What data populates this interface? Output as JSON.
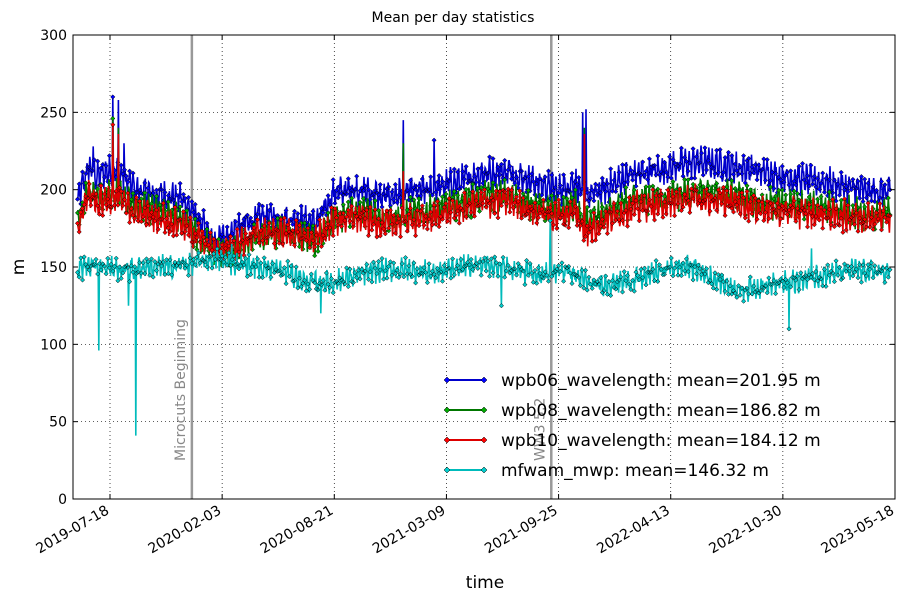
{
  "chart_data": {
    "type": "line",
    "title": "Mean per day statistics",
    "xlabel": "time",
    "ylabel": "m",
    "ylim": [
      0,
      300
    ],
    "xlim": [
      "2019-05-13",
      "2023-05-18"
    ],
    "yticks": [
      0,
      50,
      100,
      150,
      200,
      250,
      300
    ],
    "xticks": [
      "2019-07-18",
      "2020-02-03",
      "2020-08-21",
      "2021-03-09",
      "2021-09-25",
      "2022-04-13",
      "2022-10-30",
      "2023-05-18"
    ],
    "grid": true,
    "legend_position": "lower-right",
    "vertical_markers": [
      {
        "date": "2019-12-11",
        "label": "Microcuts Beginning",
        "color": "#999999"
      },
      {
        "date": "2021-09-12",
        "label": "WW3 5.2",
        "color": "#999999"
      }
    ],
    "x_start": "2019-05-21",
    "x_end": "2023-05-09",
    "series": [
      {
        "name": "wpb06_wavelength",
        "legend": "wpb06_wavelength: mean=201.95 m",
        "color": "#0000cc",
        "marker_color": "#0000ff",
        "keypoints": [
          [
            "2019-05-21",
            192
          ],
          [
            "2019-06-10",
            215
          ],
          [
            "2019-06-25",
            208
          ],
          [
            "2019-07-13",
            212
          ],
          [
            "2019-07-30",
            212
          ],
          [
            "2019-09-01",
            200
          ],
          [
            "2019-10-10",
            196
          ],
          [
            "2019-11-20",
            195
          ],
          [
            "2019-12-20",
            182
          ],
          [
            "2020-01-20",
            165
          ],
          [
            "2020-03-01",
            175
          ],
          [
            "2020-04-10",
            182
          ],
          [
            "2020-05-20",
            182
          ],
          [
            "2020-06-20",
            180
          ],
          [
            "2020-07-20",
            178
          ],
          [
            "2020-08-21",
            198
          ],
          [
            "2020-10-01",
            200
          ],
          [
            "2020-11-15",
            195
          ],
          [
            "2020-12-30",
            198
          ],
          [
            "2021-02-10",
            200
          ],
          [
            "2021-03-20",
            204
          ],
          [
            "2021-05-10",
            210
          ],
          [
            "2021-06-25",
            212
          ],
          [
            "2021-08-10",
            205
          ],
          [
            "2021-09-25",
            200
          ],
          [
            "2021-10-25",
            205
          ],
          [
            "2021-11-10",
            195
          ],
          [
            "2021-12-15",
            200
          ],
          [
            "2022-02-01",
            210
          ],
          [
            "2022-03-20",
            212
          ],
          [
            "2022-04-13",
            215
          ],
          [
            "2022-06-01",
            218
          ],
          [
            "2022-08-01",
            215
          ],
          [
            "2022-09-15",
            212
          ],
          [
            "2022-10-30",
            208
          ],
          [
            "2023-01-10",
            205
          ],
          [
            "2023-03-10",
            200
          ],
          [
            "2023-05-09",
            198
          ]
        ],
        "spikes": [
          [
            "2019-07-23",
            260
          ],
          [
            "2019-08-02",
            258
          ],
          [
            "2019-08-12",
            230
          ],
          [
            "2020-12-22",
            245
          ],
          [
            "2021-11-07",
            250
          ],
          [
            "2021-11-13",
            252
          ],
          [
            "2019-06-18",
            228
          ],
          [
            "2021-02-15",
            232
          ]
        ]
      },
      {
        "name": "wpb08_wavelength",
        "legend": "wpb08_wavelength: mean=186.82 m",
        "color": "#007700",
        "marker_color": "#00aa00",
        "keypoints": [
          [
            "2019-05-21",
            178
          ],
          [
            "2019-06-10",
            200
          ],
          [
            "2019-06-25",
            195
          ],
          [
            "2019-07-13",
            196
          ],
          [
            "2019-07-30",
            198
          ],
          [
            "2019-09-01",
            190
          ],
          [
            "2019-10-10",
            186
          ],
          [
            "2019-11-20",
            182
          ],
          [
            "2019-12-20",
            172
          ],
          [
            "2020-01-20",
            158
          ],
          [
            "2020-03-01",
            162
          ],
          [
            "2020-04-10",
            172
          ],
          [
            "2020-05-20",
            172
          ],
          [
            "2020-06-20",
            170
          ],
          [
            "2020-07-20",
            168
          ],
          [
            "2020-08-21",
            182
          ],
          [
            "2020-10-01",
            186
          ],
          [
            "2020-11-15",
            182
          ],
          [
            "2020-12-30",
            184
          ],
          [
            "2021-02-10",
            186
          ],
          [
            "2021-03-20",
            190
          ],
          [
            "2021-05-10",
            195
          ],
          [
            "2021-06-25",
            196
          ],
          [
            "2021-08-10",
            190
          ],
          [
            "2021-09-25",
            186
          ],
          [
            "2021-10-25",
            190
          ],
          [
            "2021-11-10",
            178
          ],
          [
            "2021-12-15",
            184
          ],
          [
            "2022-02-01",
            192
          ],
          [
            "2022-03-20",
            194
          ],
          [
            "2022-04-13",
            196
          ],
          [
            "2022-06-01",
            198
          ],
          [
            "2022-08-01",
            196
          ],
          [
            "2022-09-15",
            192
          ],
          [
            "2022-10-30",
            190
          ],
          [
            "2023-01-10",
            188
          ],
          [
            "2023-03-10",
            185
          ],
          [
            "2023-05-09",
            184
          ]
        ],
        "spikes": [
          [
            "2019-07-23",
            246
          ],
          [
            "2019-08-02",
            240
          ],
          [
            "2020-12-22",
            230
          ],
          [
            "2021-11-10",
            240
          ]
        ]
      },
      {
        "name": "wpb10_wavelength",
        "legend": "wpb10_wavelength: mean=184.12 m",
        "color": "#dd0000",
        "marker_color": "#ff0000",
        "keypoints": [
          [
            "2019-05-21",
            175
          ],
          [
            "2019-06-10",
            198
          ],
          [
            "2019-06-25",
            192
          ],
          [
            "2019-07-13",
            194
          ],
          [
            "2019-07-30",
            195
          ],
          [
            "2019-09-01",
            186
          ],
          [
            "2019-10-10",
            182
          ],
          [
            "2019-11-20",
            178
          ],
          [
            "2019-12-20",
            170
          ],
          [
            "2020-01-20",
            160
          ],
          [
            "2020-03-01",
            165
          ],
          [
            "2020-04-10",
            172
          ],
          [
            "2020-05-20",
            172
          ],
          [
            "2020-06-20",
            170
          ],
          [
            "2020-07-20",
            168
          ],
          [
            "2020-08-21",
            180
          ],
          [
            "2020-10-01",
            182
          ],
          [
            "2020-11-15",
            178
          ],
          [
            "2020-12-30",
            180
          ],
          [
            "2021-02-10",
            182
          ],
          [
            "2021-03-20",
            186
          ],
          [
            "2021-05-10",
            192
          ],
          [
            "2021-06-25",
            193
          ],
          [
            "2021-08-10",
            186
          ],
          [
            "2021-09-25",
            183
          ],
          [
            "2021-10-25",
            186
          ],
          [
            "2021-11-10",
            172
          ],
          [
            "2021-12-15",
            180
          ],
          [
            "2022-02-01",
            188
          ],
          [
            "2022-03-20",
            190
          ],
          [
            "2022-04-13",
            192
          ],
          [
            "2022-06-01",
            194
          ],
          [
            "2022-08-01",
            192
          ],
          [
            "2022-09-15",
            188
          ],
          [
            "2022-10-30",
            186
          ],
          [
            "2023-01-10",
            184
          ],
          [
            "2023-03-10",
            182
          ],
          [
            "2023-05-09",
            182
          ]
        ],
        "spikes": [
          [
            "2019-07-23",
            242
          ],
          [
            "2019-08-02",
            236
          ],
          [
            "2020-12-22",
            212
          ],
          [
            "2021-11-10",
            236
          ]
        ]
      },
      {
        "name": "mfwam_mwp",
        "legend": "mfwam_mwp: mean=146.32 m",
        "color": "#00bbbb",
        "marker_color": "#00cccc",
        "keypoints": [
          [
            "2019-05-21",
            148
          ],
          [
            "2019-06-10",
            152
          ],
          [
            "2019-07-13",
            150
          ],
          [
            "2019-08-10",
            148
          ],
          [
            "2019-09-20",
            150
          ],
          [
            "2019-11-01",
            150
          ],
          [
            "2019-12-10",
            152
          ],
          [
            "2020-01-20",
            155
          ],
          [
            "2020-03-01",
            152
          ],
          [
            "2020-04-10",
            150
          ],
          [
            "2020-05-20",
            148
          ],
          [
            "2020-07-01",
            140
          ],
          [
            "2020-08-21",
            140
          ],
          [
            "2020-10-01",
            145
          ],
          [
            "2020-11-15",
            148
          ],
          [
            "2021-01-01",
            148
          ],
          [
            "2021-02-15",
            146
          ],
          [
            "2021-04-01",
            150
          ],
          [
            "2021-05-20",
            152
          ],
          [
            "2021-07-10",
            148
          ],
          [
            "2021-08-25",
            145
          ],
          [
            "2021-10-10",
            148
          ],
          [
            "2021-11-25",
            138
          ],
          [
            "2022-01-01",
            140
          ],
          [
            "2022-02-15",
            142
          ],
          [
            "2022-04-13",
            150
          ],
          [
            "2022-05-20",
            150
          ],
          [
            "2022-07-01",
            142
          ],
          [
            "2022-08-15",
            135
          ],
          [
            "2022-10-01",
            138
          ],
          [
            "2022-11-15",
            140
          ],
          [
            "2023-01-10",
            145
          ],
          [
            "2023-03-10",
            148
          ],
          [
            "2023-05-09",
            146
          ]
        ],
        "spikes": [
          [
            "2019-06-28",
            96
          ],
          [
            "2019-09-02",
            41
          ],
          [
            "2019-08-20",
            125
          ],
          [
            "2020-07-28",
            120
          ],
          [
            "2022-11-10",
            110
          ],
          [
            "2022-12-20",
            162
          ],
          [
            "2021-06-15",
            125
          ],
          [
            "2022-09-01",
            140
          ],
          [
            "2021-09-10",
            180
          ],
          [
            "2020-02-20",
            165
          ]
        ]
      }
    ]
  }
}
